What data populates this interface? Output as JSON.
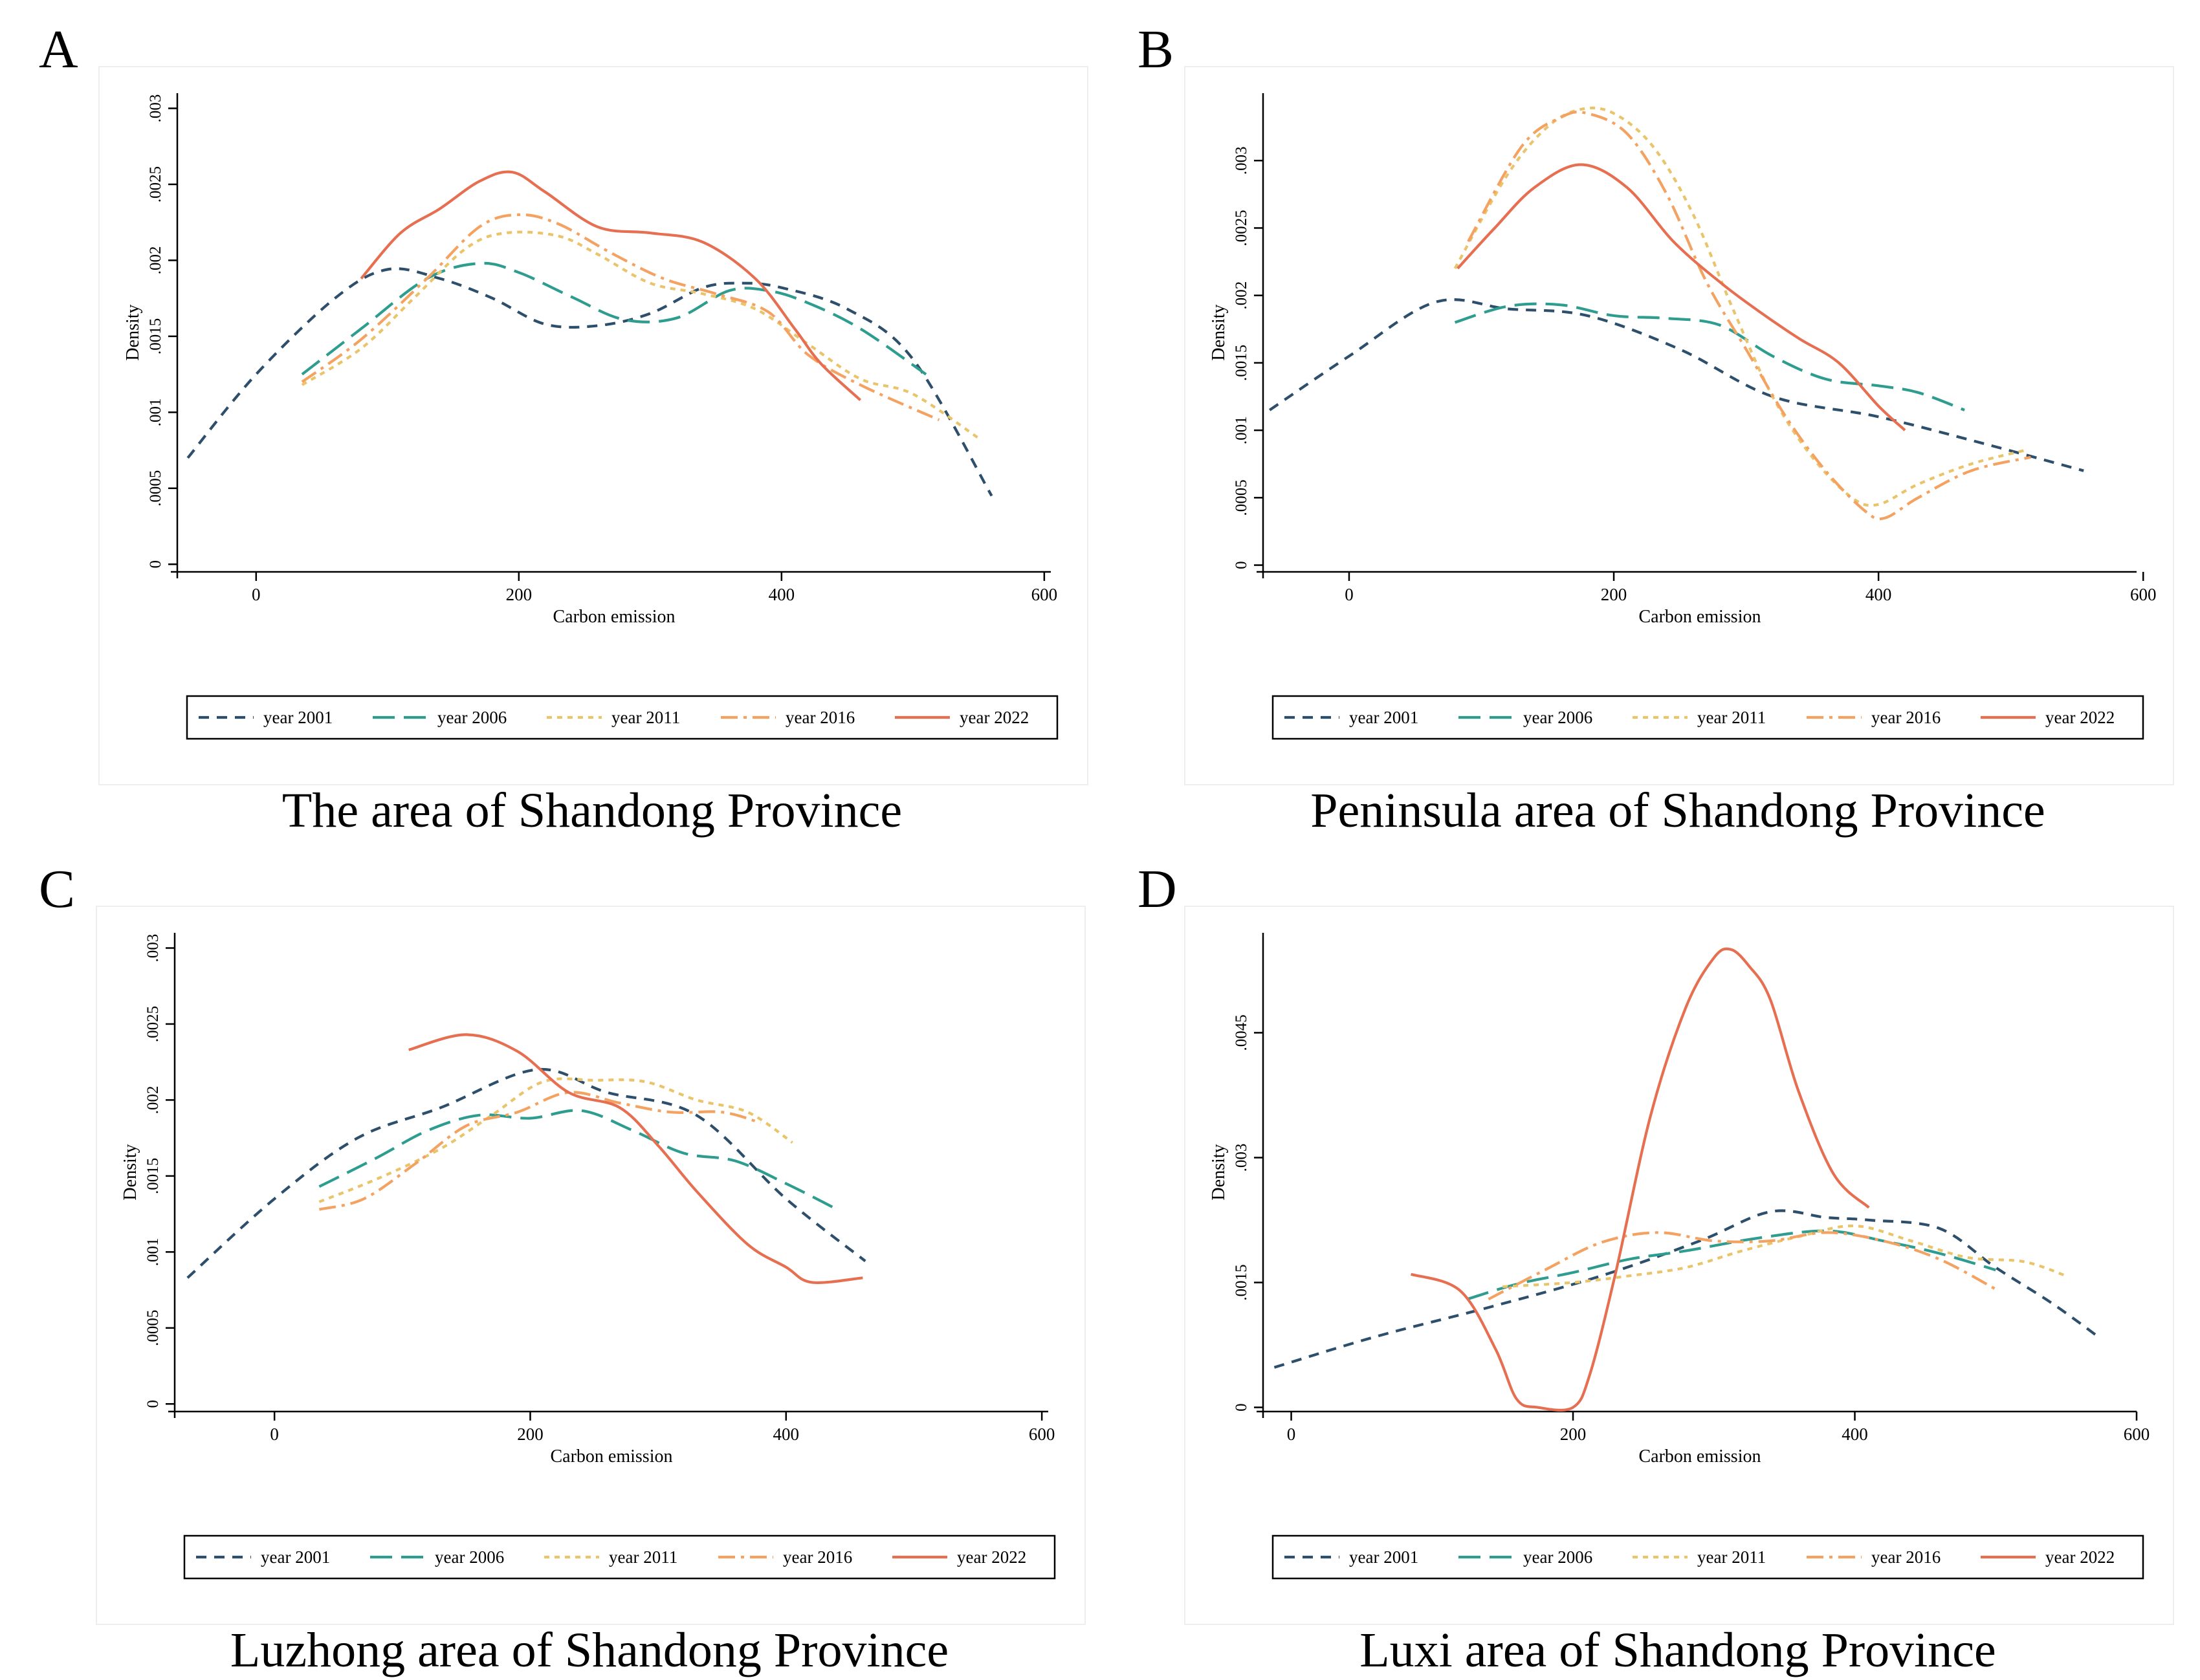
{
  "colors": {
    "year2001": "#2d4f6b",
    "year2006": "#2e9d8f",
    "year2011": "#e9c46a",
    "year2016": "#f4a261",
    "year2022": "#e76f51"
  },
  "chart_data": [
    {
      "type": "line",
      "letter": "A",
      "caption": "The area of Shandong Province",
      "xlabel": "Carbon emission",
      "ylabel": "Density",
      "xlim": [
        -60,
        605
      ],
      "ylim": [
        -5e-05,
        0.0031
      ],
      "xticks": [
        0,
        200,
        400,
        600
      ],
      "xtick_labels": [
        "0",
        "200",
        "400",
        "600"
      ],
      "yticks": [
        0,
        0.0005,
        0.001,
        0.0015,
        0.002,
        0.0025,
        0.003
      ],
      "ytick_labels": [
        "0",
        ".0005",
        ".001",
        ".0015",
        ".002",
        ".0025",
        ".003"
      ],
      "series": [
        {
          "name": "year 2001",
          "key": "year2001",
          "dash": "dash",
          "x": [
            -52,
            0,
            60,
            100,
            140,
            180,
            220,
            260,
            300,
            340,
            370,
            400,
            450,
            500,
            560
          ],
          "y": [
            0.0007,
            0.00125,
            0.00175,
            0.00194,
            0.00188,
            0.00175,
            0.00158,
            0.00157,
            0.00165,
            0.00182,
            0.00185,
            0.00182,
            0.00168,
            0.00135,
            0.00045
          ]
        },
        {
          "name": "year 2006",
          "key": "year2006",
          "dash": "longdash",
          "x": [
            35,
            80,
            130,
            170,
            200,
            240,
            280,
            320,
            360,
            390,
            420,
            460,
            510
          ],
          "y": [
            0.00125,
            0.00155,
            0.00188,
            0.00198,
            0.00192,
            0.00176,
            0.00161,
            0.00162,
            0.0018,
            0.0018,
            0.00172,
            0.00155,
            0.00125
          ]
        },
        {
          "name": "year 2011",
          "key": "year2011",
          "dash": "shortdash",
          "x": [
            35,
            80,
            120,
            160,
            190,
            230,
            260,
            300,
            340,
            380,
            420,
            460,
            500,
            550
          ],
          "y": [
            0.00118,
            0.00142,
            0.00175,
            0.00208,
            0.00218,
            0.00216,
            0.00204,
            0.00185,
            0.00178,
            0.00168,
            0.00145,
            0.00122,
            0.00112,
            0.00083
          ]
        },
        {
          "name": "year 2016",
          "key": "year2016",
          "dash": "dashdot",
          "x": [
            35,
            80,
            130,
            170,
            200,
            230,
            270,
            310,
            350,
            390,
            420,
            460,
            520
          ],
          "y": [
            0.0012,
            0.00148,
            0.00188,
            0.00222,
            0.0023,
            0.00224,
            0.00205,
            0.00188,
            0.00178,
            0.00166,
            0.00138,
            0.00118,
            0.00095
          ]
        },
        {
          "name": "year 2022",
          "key": "year2022",
          "dash": "solid",
          "x": [
            80,
            110,
            140,
            170,
            195,
            220,
            260,
            300,
            340,
            380,
            410,
            430,
            460
          ],
          "y": [
            0.00188,
            0.00218,
            0.00234,
            0.00252,
            0.00258,
            0.00245,
            0.00222,
            0.00218,
            0.00212,
            0.00188,
            0.00155,
            0.00132,
            0.00108
          ]
        }
      ]
    },
    {
      "type": "line",
      "letter": "B",
      "caption": "Peninsula area of Shandong Province",
      "xlabel": "Carbon emission",
      "ylabel": "Density",
      "xlim": [
        -65,
        595
      ],
      "ylim": [
        -5e-05,
        0.0035
      ],
      "xticks": [
        0,
        200,
        400,
        600
      ],
      "xtick_labels": [
        "0",
        "200",
        "400",
        "600"
      ],
      "yticks": [
        0,
        0.0005,
        0.001,
        0.0015,
        0.002,
        0.0025,
        0.003
      ],
      "ytick_labels": [
        "0",
        ".0005",
        ".001",
        ".0015",
        ".002",
        ".0025",
        ".003"
      ],
      "series": [
        {
          "name": "year 2001",
          "key": "year2001",
          "dash": "dash",
          "x": [
            -60,
            0,
            65,
            120,
            180,
            250,
            320,
            400,
            480,
            555
          ],
          "y": [
            0.00115,
            0.00155,
            0.00195,
            0.0019,
            0.00185,
            0.0016,
            0.00125,
            0.0011,
            0.0009,
            0.0007
          ]
        },
        {
          "name": "year 2006",
          "key": "year2006",
          "dash": "longdash",
          "x": [
            80,
            120,
            160,
            200,
            240,
            280,
            320,
            360,
            400,
            430,
            465
          ],
          "y": [
            0.0018,
            0.00192,
            0.00193,
            0.00185,
            0.00183,
            0.00178,
            0.00155,
            0.00138,
            0.00133,
            0.00128,
            0.00115
          ]
        },
        {
          "name": "year 2011",
          "key": "year2011",
          "dash": "shortdash",
          "x": [
            80,
            120,
            150,
            175,
            200,
            230,
            260,
            290,
            320,
            350,
            380,
            400,
            430,
            470,
            510
          ],
          "y": [
            0.0022,
            0.0029,
            0.00325,
            0.00338,
            0.00335,
            0.0031,
            0.0026,
            0.0019,
            0.00125,
            0.0008,
            0.0005,
            0.00045,
            0.0006,
            0.00075,
            0.00085
          ]
        },
        {
          "name": "year 2016",
          "key": "year2016",
          "dash": "dashdot",
          "x": [
            90,
            130,
            160,
            180,
            210,
            240,
            270,
            300,
            330,
            360,
            390,
            405,
            430,
            470,
            515
          ],
          "y": [
            0.0024,
            0.0031,
            0.00332,
            0.00335,
            0.0032,
            0.00275,
            0.0021,
            0.0016,
            0.0011,
            0.0007,
            0.0004,
            0.00035,
            0.0005,
            0.0007,
            0.0008
          ]
        },
        {
          "name": "year 2022",
          "key": "year2022",
          "dash": "solid",
          "x": [
            82,
            110,
            140,
            175,
            210,
            245,
            280,
            310,
            340,
            370,
            400,
            420
          ],
          "y": [
            0.0022,
            0.0025,
            0.0028,
            0.00297,
            0.0028,
            0.0024,
            0.0021,
            0.00188,
            0.00168,
            0.0015,
            0.00118,
            0.001
          ]
        }
      ]
    },
    {
      "type": "line",
      "letter": "C",
      "caption": "Luzhong area of Shandong Province",
      "xlabel": "Carbon emission",
      "ylabel": "Density",
      "xlim": [
        -78,
        605
      ],
      "ylim": [
        -5e-05,
        0.0031
      ],
      "xticks": [
        0,
        200,
        400,
        600
      ],
      "xtick_labels": [
        "0",
        "200",
        "400",
        "600"
      ],
      "yticks": [
        0,
        0.0005,
        0.001,
        0.0015,
        0.002,
        0.0025,
        0.003
      ],
      "ytick_labels": [
        "0",
        ".0005",
        ".001",
        ".0015",
        ".002",
        ".0025",
        ".003"
      ],
      "series": [
        {
          "name": "year 2001",
          "key": "year2001",
          "dash": "dash",
          "x": [
            -68,
            0,
            65,
            130,
            205,
            260,
            330,
            400,
            462
          ],
          "y": [
            0.00083,
            0.00135,
            0.00175,
            0.00195,
            0.0022,
            0.00205,
            0.0019,
            0.00135,
            0.00094
          ]
        },
        {
          "name": "year 2006",
          "key": "year2006",
          "dash": "longdash",
          "x": [
            35,
            80,
            120,
            160,
            200,
            240,
            280,
            320,
            360,
            400,
            440
          ],
          "y": [
            0.00143,
            0.00162,
            0.0018,
            0.0019,
            0.00188,
            0.00193,
            0.0018,
            0.00165,
            0.0016,
            0.00145,
            0.00128
          ]
        },
        {
          "name": "year 2011",
          "key": "year2011",
          "dash": "shortdash",
          "x": [
            35,
            80,
            130,
            170,
            210,
            250,
            290,
            330,
            370,
            405
          ],
          "y": [
            0.00133,
            0.00148,
            0.00168,
            0.0019,
            0.00212,
            0.00213,
            0.00212,
            0.002,
            0.00192,
            0.00172
          ]
        },
        {
          "name": "year 2016",
          "key": "year2016",
          "dash": "dashdot",
          "x": [
            35,
            70,
            110,
            150,
            190,
            230,
            270,
            310,
            350,
            380
          ],
          "y": [
            0.00128,
            0.00135,
            0.00158,
            0.00183,
            0.00192,
            0.00205,
            0.00198,
            0.00192,
            0.00192,
            0.00185
          ]
        },
        {
          "name": "year 2022",
          "key": "year2022",
          "dash": "solid",
          "x": [
            105,
            150,
            190,
            230,
            270,
            300,
            330,
            370,
            400,
            420,
            460
          ],
          "y": [
            0.00233,
            0.00243,
            0.00232,
            0.00205,
            0.00195,
            0.0017,
            0.0014,
            0.00105,
            0.0009,
            0.0008,
            0.00083
          ]
        }
      ]
    },
    {
      "type": "line",
      "letter": "D",
      "caption": "Luxi area of Shandong Province",
      "xlabel": "Carbon emission",
      "ylabel": "Density",
      "xlim": [
        -20,
        600
      ],
      "ylim": [
        -5e-05,
        0.0057
      ],
      "xticks": [
        0,
        200,
        400,
        600
      ],
      "xtick_labels": [
        "0",
        "200",
        "400",
        "600"
      ],
      "yticks": [
        0,
        0.0015,
        0.003,
        0.0045
      ],
      "ytick_labels": [
        "0",
        ".0015",
        ".003",
        ".0045"
      ],
      "series": [
        {
          "name": "year 2001",
          "key": "year2001",
          "dash": "dash",
          "x": [
            -12,
            60,
            140,
            220,
            290,
            340,
            380,
            410,
            460,
            500,
            540,
            575
          ],
          "y": [
            0.00048,
            0.00085,
            0.0012,
            0.00158,
            0.002,
            0.00235,
            0.00228,
            0.00225,
            0.00215,
            0.00168,
            0.00125,
            0.00082
          ]
        },
        {
          "name": "year 2006",
          "key": "year2006",
          "dash": "longdash",
          "x": [
            125,
            160,
            200,
            240,
            280,
            330,
            380,
            420,
            460,
            500
          ],
          "y": [
            0.0013,
            0.00148,
            0.00162,
            0.00178,
            0.00188,
            0.00203,
            0.00212,
            0.002,
            0.00185,
            0.00165
          ]
        },
        {
          "name": "year 2011",
          "key": "year2011",
          "dash": "shortdash",
          "x": [
            150,
            200,
            240,
            280,
            320,
            360,
            400,
            440,
            480,
            520,
            550
          ],
          "y": [
            0.00145,
            0.0015,
            0.00158,
            0.00168,
            0.00188,
            0.00205,
            0.00218,
            0.002,
            0.0018,
            0.00175,
            0.00158
          ]
        },
        {
          "name": "year 2016",
          "key": "year2016",
          "dash": "dashdot",
          "x": [
            140,
            180,
            220,
            260,
            300,
            340,
            380,
            420,
            460,
            500
          ],
          "y": [
            0.0013,
            0.00165,
            0.00198,
            0.0021,
            0.002,
            0.002,
            0.0021,
            0.002,
            0.00178,
            0.00142
          ]
        },
        {
          "name": "year 2022",
          "key": "year2022",
          "dash": "solid",
          "x": [
            85,
            120,
            145,
            160,
            175,
            200,
            212,
            230,
            255,
            280,
            300,
            312,
            325,
            340,
            360,
            385,
            410
          ],
          "y": [
            0.0016,
            0.0014,
            0.0007,
            0.0001,
            0.0,
            0.0,
            0.0004,
            0.0016,
            0.0035,
            0.0048,
            0.0054,
            0.0055,
            0.0053,
            0.0049,
            0.0038,
            0.0028,
            0.0024
          ]
        }
      ]
    }
  ]
}
